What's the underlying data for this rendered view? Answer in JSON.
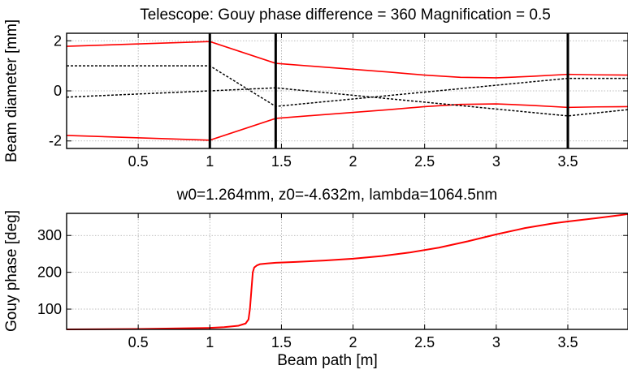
{
  "chart_data": [
    {
      "type": "line",
      "title": "Telescope: Gouy phase difference = 360 Magnification = 0.5",
      "xlabel": "",
      "ylabel": "Beam diameter [mm]",
      "xlim": [
        0,
        3.92
      ],
      "ylim": [
        -2.3,
        2.3
      ],
      "xticks": [
        0.5,
        1,
        1.5,
        2,
        2.5,
        3,
        3.5
      ],
      "xtick_labels": [
        "0.5",
        "1",
        "1.5",
        "2",
        "2.5",
        "3",
        "3.5"
      ],
      "yticks": [
        -2,
        0,
        2
      ],
      "ytick_labels": [
        "-2",
        "0",
        "2"
      ],
      "grid": true,
      "lenses_x": [
        1.0,
        1.46,
        3.5
      ],
      "series": [
        {
          "style": "red-solid",
          "x": [
            0,
            1.0,
            1.46,
            1.75,
            2.0,
            2.25,
            2.5,
            2.75,
            3.0,
            3.25,
            3.5,
            3.7,
            3.92
          ],
          "values": [
            1.78,
            1.97,
            1.1,
            0.97,
            0.86,
            0.75,
            0.63,
            0.54,
            0.52,
            0.58,
            0.66,
            0.64,
            0.63
          ]
        },
        {
          "style": "red-solid",
          "x": [
            0,
            1.0,
            1.46,
            1.75,
            2.0,
            2.25,
            2.5,
            2.75,
            3.0,
            3.25,
            3.5,
            3.7,
            3.92
          ],
          "values": [
            -1.78,
            -1.97,
            -1.1,
            -0.97,
            -0.86,
            -0.75,
            -0.63,
            -0.54,
            -0.52,
            -0.58,
            -0.66,
            -0.64,
            -0.63
          ]
        },
        {
          "style": "black-dotted",
          "x": [
            0,
            1.0,
            1.46,
            3.5,
            3.92
          ],
          "values": [
            1.0,
            1.0,
            -0.62,
            0.5,
            0.5
          ]
        },
        {
          "style": "black-dotted",
          "x": [
            0,
            1.0,
            1.46,
            3.5,
            3.92
          ],
          "values": [
            -0.25,
            0.0,
            0.12,
            -1.0,
            -0.75
          ]
        }
      ]
    },
    {
      "type": "line",
      "title": "w0=1.264mm, z0=-4.632m, lambda=1064.5nm",
      "xlabel": "Beam path [m]",
      "ylabel": "Gouy phase [deg]",
      "xlim": [
        0,
        3.92
      ],
      "ylim": [
        45,
        360
      ],
      "xticks": [
        0.5,
        1,
        1.5,
        2,
        2.5,
        3,
        3.5
      ],
      "xtick_labels": [
        "0.5",
        "1",
        "1.5",
        "2",
        "2.5",
        "3",
        "3.5"
      ],
      "yticks": [
        100,
        200,
        300
      ],
      "ytick_labels": [
        "100",
        "200",
        "300"
      ],
      "grid": true,
      "series": [
        {
          "style": "red-solid",
          "x": [
            0,
            0.5,
            1.0,
            1.1,
            1.2,
            1.25,
            1.27,
            1.28,
            1.29,
            1.3,
            1.31,
            1.33,
            1.35,
            1.4,
            1.46,
            1.6,
            1.8,
            2.0,
            2.2,
            2.4,
            2.6,
            2.8,
            3.0,
            3.2,
            3.4,
            3.5,
            3.7,
            3.92
          ],
          "values": [
            45,
            46,
            49,
            51,
            55,
            61,
            72,
            100,
            150,
            200,
            213,
            219,
            222,
            224,
            226,
            228,
            232,
            237,
            244,
            254,
            267,
            284,
            303,
            320,
            333,
            338,
            347,
            358
          ]
        }
      ]
    }
  ]
}
